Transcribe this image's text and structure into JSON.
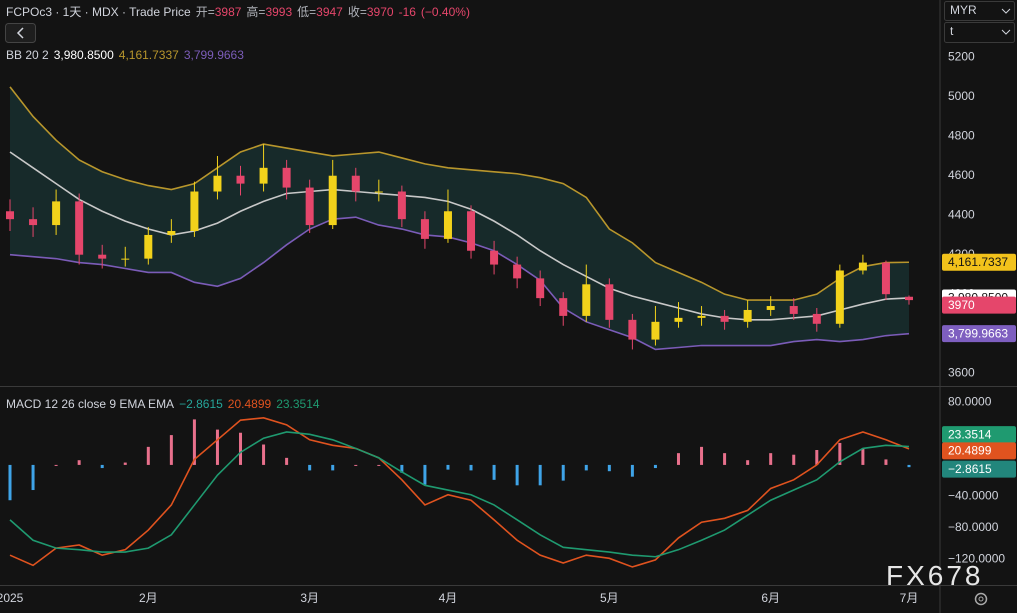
{
  "chart_data": {
    "type": "candlestick",
    "title": "FCPOc3 · 1天 · MDX · Trade Price",
    "ohlc_labels": [
      "开=",
      "高=",
      "低=",
      "收="
    ],
    "change": -16,
    "change_pct": {
      "value": -0.4,
      "label": "(−0.40%)"
    },
    "categories": [
      "2025",
      null,
      null,
      null,
      null,
      null,
      "2月",
      null,
      null,
      null,
      null,
      null,
      null,
      "3月",
      null,
      null,
      null,
      null,
      null,
      "4月",
      null,
      null,
      null,
      null,
      null,
      null,
      "5月",
      null,
      null,
      null,
      null,
      null,
      null,
      "6月",
      null,
      null,
      null,
      null,
      null,
      "7月"
    ],
    "open": [
      4420,
      4380,
      4350,
      4470,
      4200,
      4180,
      4180,
      4300,
      4320,
      4520,
      4600,
      4560,
      4640,
      4540,
      4350,
      4600,
      4520,
      4520,
      4380,
      4280,
      4420,
      4220,
      4150,
      4080,
      3980,
      3890,
      4050,
      3870,
      3770,
      3860,
      3880,
      3890,
      3860,
      3920,
      3940,
      3900,
      3850,
      4120,
      4160,
      3987
    ],
    "high": [
      4480,
      4440,
      4530,
      4510,
      4250,
      4240,
      4340,
      4380,
      4570,
      4700,
      4650,
      4760,
      4680,
      4580,
      4680,
      4640,
      4580,
      4550,
      4420,
      4530,
      4450,
      4270,
      4190,
      4120,
      4010,
      4150,
      4080,
      3900,
      3940,
      3960,
      3940,
      3920,
      3970,
      3990,
      3980,
      3930,
      4150,
      4200,
      4170,
      3993
    ],
    "low": [
      4320,
      4290,
      4300,
      4150,
      4130,
      4140,
      4150,
      4260,
      4290,
      4480,
      4500,
      4520,
      4480,
      4310,
      4330,
      4470,
      4470,
      4340,
      4230,
      4260,
      4180,
      4100,
      4030,
      3940,
      3840,
      3860,
      3830,
      3720,
      3740,
      3830,
      3840,
      3820,
      3830,
      3890,
      3870,
      3810,
      3830,
      4100,
      3970,
      3947
    ],
    "close": [
      4380,
      4350,
      4470,
      4200,
      4180,
      4180,
      4300,
      4320,
      4520,
      4600,
      4560,
      4640,
      4540,
      4350,
      4600,
      4520,
      4520,
      4380,
      4280,
      4420,
      4220,
      4150,
      4080,
      3980,
      3890,
      4050,
      3870,
      3770,
      3860,
      3880,
      3890,
      3860,
      3920,
      3940,
      3900,
      3850,
      4120,
      4160,
      4000,
      3970
    ],
    "up_color": "#f2d21b",
    "down_color": "#e5466b",
    "ylim": [
      3540,
      5490
    ],
    "yticks": [
      3600,
      3800,
      4000,
      4200,
      4400,
      4600,
      4800,
      5000,
      5200
    ],
    "bollinger": {
      "label": "BB 20 2",
      "fill": "#172a2a",
      "basis": {
        "color": "#c8c8c8",
        "values": [
          4720,
          4640,
          4560,
          4480,
          4420,
          4370,
          4330,
          4300,
          4320,
          4360,
          4420,
          4470,
          4510,
          4520,
          4530,
          4520,
          4510,
          4500,
          4490,
          4470,
          4430,
          4370,
          4300,
          4220,
          4150,
          4090,
          4030,
          3990,
          3960,
          3930,
          3900,
          3880,
          3870,
          3870,
          3880,
          3890,
          3920,
          3950,
          3975,
          3980.85
        ],
        "value_labels": {
          "39": "3,980.8500"
        },
        "tag_text": "#131313"
      },
      "upper": {
        "color": "#b8962c",
        "values": [
          5050,
          4900,
          4780,
          4680,
          4620,
          4580,
          4550,
          4530,
          4560,
          4640,
          4720,
          4760,
          4740,
          4720,
          4700,
          4710,
          4720,
          4690,
          4660,
          4640,
          4630,
          4620,
          4610,
          4590,
          4560,
          4490,
          4330,
          4260,
          4160,
          4110,
          4060,
          4000,
          3970,
          3970,
          3970,
          4000,
          4080,
          4140,
          4160,
          4161.7337
        ],
        "value_labels": {
          "39": "4,161.7337"
        },
        "tag_color": "#f2c21b",
        "tag_text": "#131313"
      },
      "lower": {
        "color": "#7b5cb8",
        "values": [
          4200,
          4190,
          4180,
          4160,
          4150,
          4130,
          4110,
          4110,
          4060,
          4040,
          4080,
          4160,
          4250,
          4330,
          4380,
          4390,
          4350,
          4330,
          4300,
          4290,
          4260,
          4220,
          4150,
          4070,
          3930,
          3860,
          3820,
          3780,
          3720,
          3730,
          3740,
          3740,
          3740,
          3740,
          3760,
          3770,
          3760,
          3770,
          3790,
          3799.9663
        ],
        "value_labels": {
          "39": "3,799.9663"
        },
        "tag_color": "#7e5fc0",
        "tag_text": "#ffffff"
      }
    },
    "macd": {
      "label": "MACD 12 26 close 9 EMA EMA",
      "ylim": [
        -153,
        98
      ],
      "yticks": [
        {
          "value": 80,
          "label": "80.0000"
        },
        {
          "value": -40,
          "label": "−40.0000"
        },
        {
          "value": -80,
          "label": "−80.0000"
        },
        {
          "value": -120,
          "label": "−120.0000"
        }
      ],
      "histogram": {
        "values": [
          -45,
          -32,
          0,
          6,
          -4,
          3,
          23,
          38,
          58,
          45,
          41,
          26,
          9,
          -7,
          -7,
          0,
          0,
          -10,
          -25,
          -6,
          -7,
          -19,
          -26,
          -26,
          -20,
          -7,
          -8,
          -15,
          -4,
          15,
          23,
          15,
          6,
          15,
          13,
          19,
          28,
          21,
          7,
          -2.8615
        ],
        "value_labels": {
          "39": "−2.8615"
        },
        "up_color": "#e8708c",
        "down_color": "#3fa4e8",
        "tag_color": "#22867c"
      },
      "macd": {
        "color": "#e0531f",
        "values": [
          -115,
          -128,
          -106,
          -102,
          -115,
          -108,
          -83,
          -51,
          7,
          32,
          57,
          60,
          51,
          32,
          25,
          21,
          9,
          -19,
          -51,
          -38,
          -45,
          -70,
          -96,
          -115,
          -125,
          -115,
          -119,
          -130,
          -121,
          -93,
          -73,
          -68,
          -58,
          -30,
          -19,
          0,
          32,
          42,
          32,
          20.4899
        ]
      },
      "signal": {
        "color": "#1f9a70",
        "values": [
          -70,
          -96,
          -106,
          -108,
          -111,
          -111,
          -106,
          -89,
          -51,
          -13,
          16,
          34,
          42,
          39,
          32,
          21,
          9,
          -9,
          -26,
          -32,
          -38,
          -51,
          -70,
          -89,
          -105,
          -108,
          -111,
          -115,
          -117,
          -108,
          -96,
          -83,
          -64,
          -45,
          -32,
          -19,
          4,
          21,
          25,
          23.3514
        ]
      }
    }
  },
  "ui": {
    "currency": "MYR",
    "unit": "t",
    "watermark": "FX678"
  }
}
